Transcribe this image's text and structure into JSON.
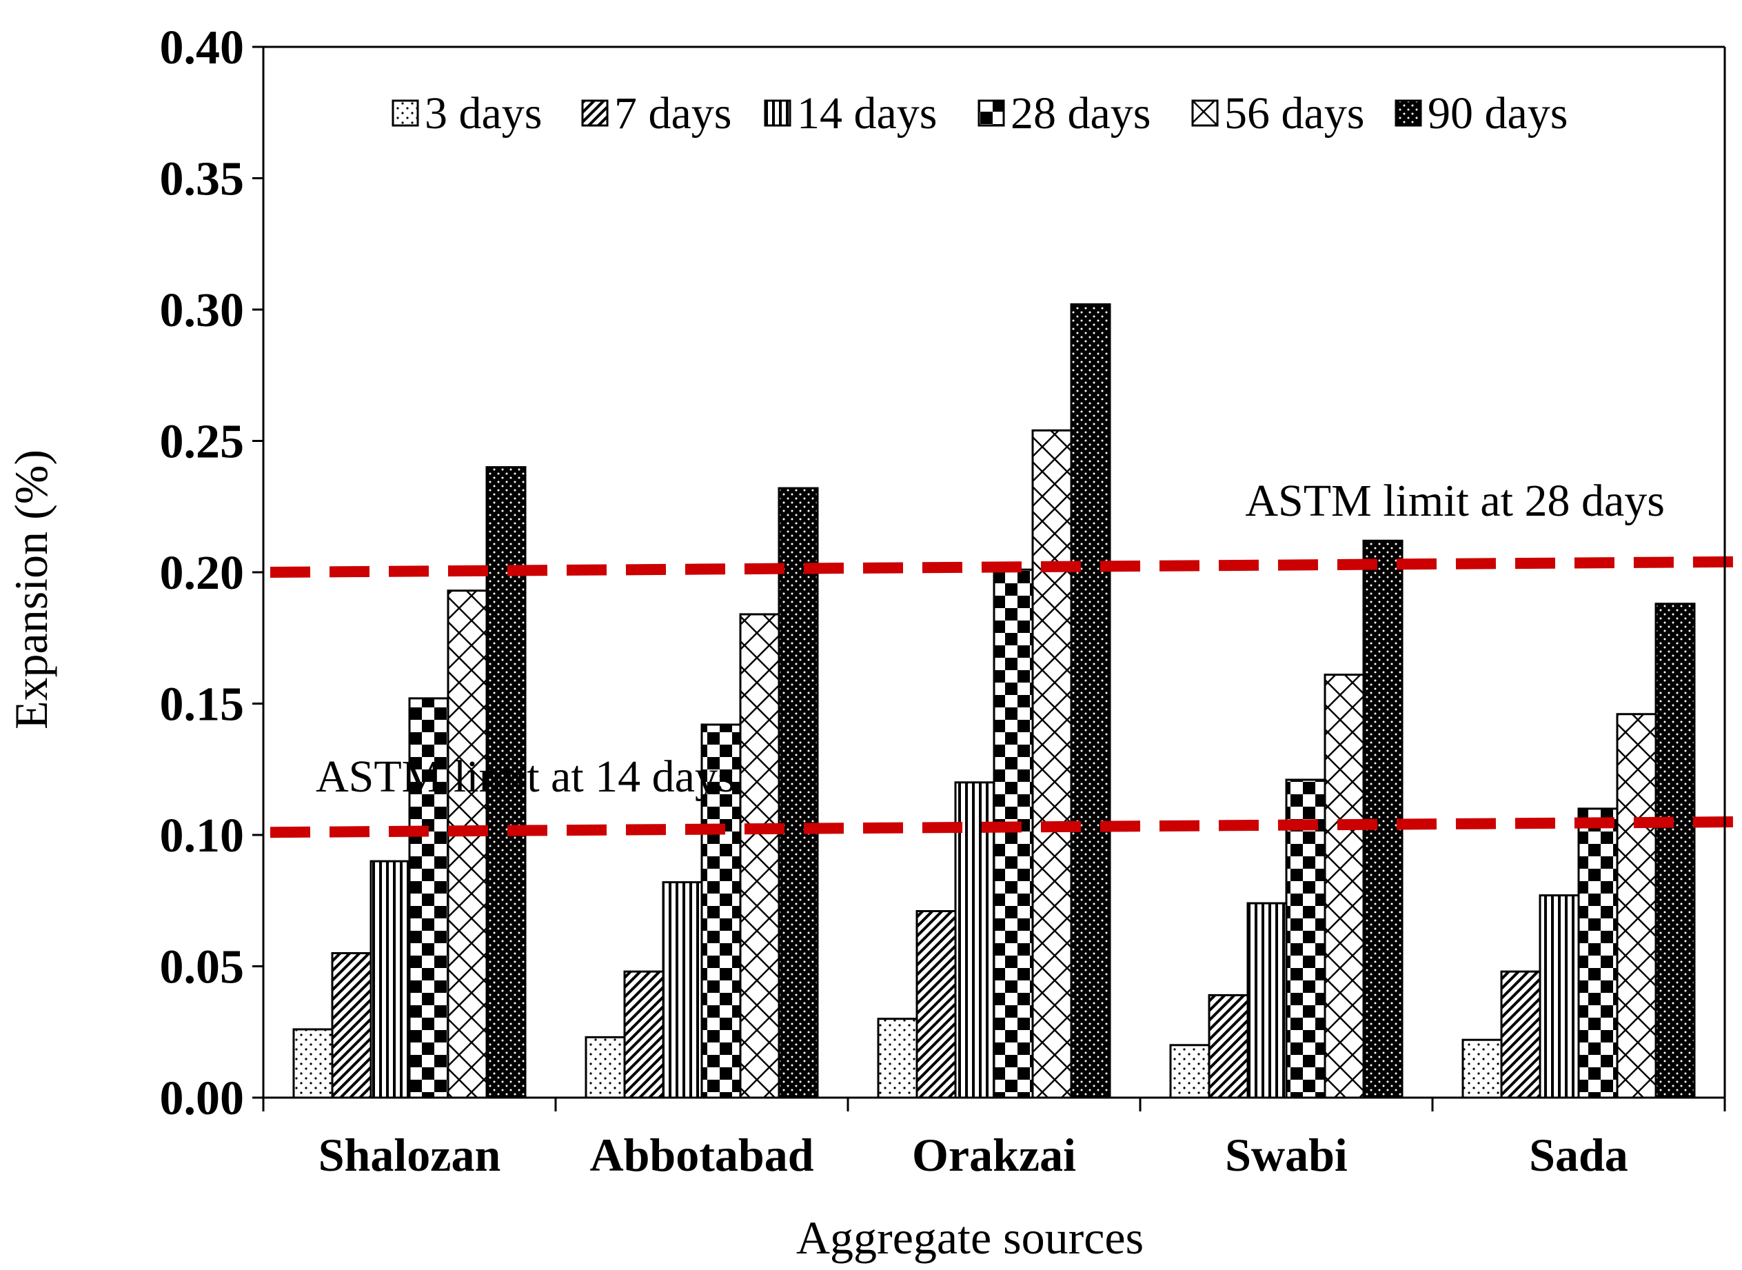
{
  "chart_data": {
    "type": "bar",
    "title": "",
    "xlabel": "Aggregate sources",
    "ylabel": "Expansion (%)",
    "ylim": [
      0,
      0.4
    ],
    "yticks": [
      "0.00",
      "0.05",
      "0.10",
      "0.15",
      "0.20",
      "0.25",
      "0.30",
      "0.35",
      "0.40"
    ],
    "categories": [
      "Shalozan",
      "Abbotabad",
      "Orakzai",
      "Swabi",
      "Sada"
    ],
    "series": [
      {
        "name": "3 days",
        "pattern": "dots",
        "values": [
          0.026,
          0.023,
          0.03,
          0.02,
          0.022
        ]
      },
      {
        "name": "7 days",
        "pattern": "diagonal",
        "values": [
          0.055,
          0.048,
          0.071,
          0.039,
          0.048
        ]
      },
      {
        "name": "14 days",
        "pattern": "vertical",
        "values": [
          0.09,
          0.082,
          0.12,
          0.074,
          0.077
        ]
      },
      {
        "name": "28 days",
        "pattern": "checker",
        "values": [
          0.152,
          0.142,
          0.201,
          0.121,
          0.11
        ]
      },
      {
        "name": "56 days",
        "pattern": "crosshatch",
        "values": [
          0.193,
          0.184,
          0.254,
          0.161,
          0.146
        ]
      },
      {
        "name": "90 days",
        "pattern": "darkdots",
        "values": [
          0.24,
          0.232,
          0.302,
          0.212,
          0.188
        ]
      }
    ],
    "reference_lines": [
      {
        "label": "ASTM limit at 14 days",
        "y_start": 0.101,
        "y_end": 0.105,
        "color": "#cc0000"
      },
      {
        "label": "ASTM limit at 28 days",
        "y_start": 0.2,
        "y_end": 0.204,
        "color": "#cc0000"
      }
    ],
    "legend_position": "top"
  }
}
